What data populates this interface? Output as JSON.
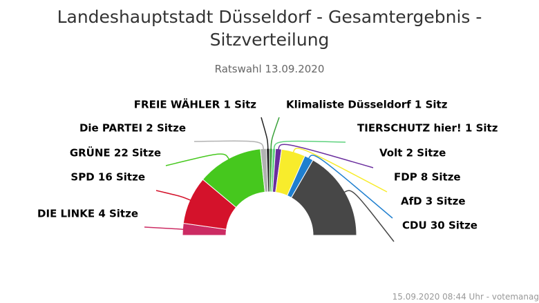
{
  "title": "Landeshauptstadt Düsseldorf - Gesamtergebnis - Sitzverteilung",
  "subtitle": "Ratswahl 13.09.2020",
  "footer": "15.09.2020 08:44 Uhr - votemanag",
  "chart_data": {
    "type": "pie",
    "variant": "semicircle-parliament",
    "title": "Landeshauptstadt Düsseldorf - Gesamtergebnis - Sitzverteilung",
    "subtitle": "Ratswahl 13.09.2020",
    "unit_singular": "Sitz",
    "unit_plural": "Sitze",
    "total": 90,
    "slices": [
      {
        "name": "DIE LINKE",
        "value": 4,
        "color": "#cc2b63",
        "label": "DIE LINKE 4 Sitze"
      },
      {
        "name": "SPD",
        "value": 16,
        "color": "#d4122b",
        "label": "SPD 16 Sitze"
      },
      {
        "name": "GRÜNE",
        "value": 22,
        "color": "#46c81e",
        "label": "GRÜNE 22 Sitze"
      },
      {
        "name": "Die PARTEI",
        "value": 2,
        "color": "#b2b2b2",
        "label": "Die PARTEI 2 Sitze"
      },
      {
        "name": "FREIE WÄHLER",
        "value": 1,
        "color": "#222222",
        "label": "FREIE WÄHLER 1 Sitz"
      },
      {
        "name": "Klimaliste Düsseldorf",
        "value": 1,
        "color": "#3aa13a",
        "label": "Klimaliste Düsseldorf 1 Sitz"
      },
      {
        "name": "TIERSCHUTZ hier!",
        "value": 1,
        "color": "#5ed27e",
        "label": "TIERSCHUTZ hier! 1 Sitz"
      },
      {
        "name": "Volt",
        "value": 2,
        "color": "#6a2e9e",
        "label": "Volt 2 Sitze"
      },
      {
        "name": "FDP",
        "value": 8,
        "color": "#f8ec2c",
        "label": "FDP 8 Sitze"
      },
      {
        "name": "AfD",
        "value": 3,
        "color": "#1f7fcf",
        "label": "AfD 3 Sitze"
      },
      {
        "name": "CDU",
        "value": 30,
        "color": "#474747",
        "label": "CDU 30 Sitze"
      }
    ]
  }
}
